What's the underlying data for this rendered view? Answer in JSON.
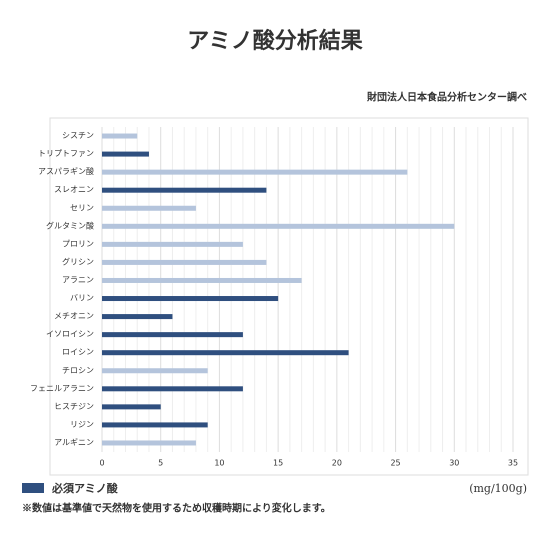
{
  "chart_data": {
    "type": "bar",
    "orientation": "horizontal",
    "title": "アミノ酸分析結果",
    "source": "財団法人日本食品分析センター調べ",
    "unit": "(mg/100g)",
    "note": "※数値は基準値で天然物を使用するため収穫時期により変化します。",
    "categories": [
      "シスチン",
      "トリプトファン",
      "アスパラギン酸",
      "スレオニン",
      "セリン",
      "グルタミン酸",
      "プロリン",
      "グリシン",
      "アラニン",
      "バリン",
      "メチオニン",
      "イソロイシン",
      "ロイシン",
      "チロシン",
      "フェニルアラニン",
      "ヒスチジン",
      "リジン",
      "アルギニン"
    ],
    "series": [
      {
        "name": "必須アミノ酸",
        "color": "#2f4f7f",
        "values": [
          null,
          4,
          null,
          14,
          null,
          null,
          null,
          null,
          null,
          15,
          6,
          12,
          21,
          null,
          12,
          5,
          9,
          null
        ]
      },
      {
        "color": "#b4c4dc",
        "values": [
          3,
          null,
          26,
          null,
          8,
          30,
          12,
          14,
          17,
          null,
          null,
          null,
          null,
          9,
          null,
          null,
          null,
          8
        ]
      }
    ],
    "xlim": [
      0,
      35
    ],
    "xticks": [
      0,
      5,
      10,
      15,
      20,
      25,
      30,
      35
    ],
    "grid": true
  }
}
